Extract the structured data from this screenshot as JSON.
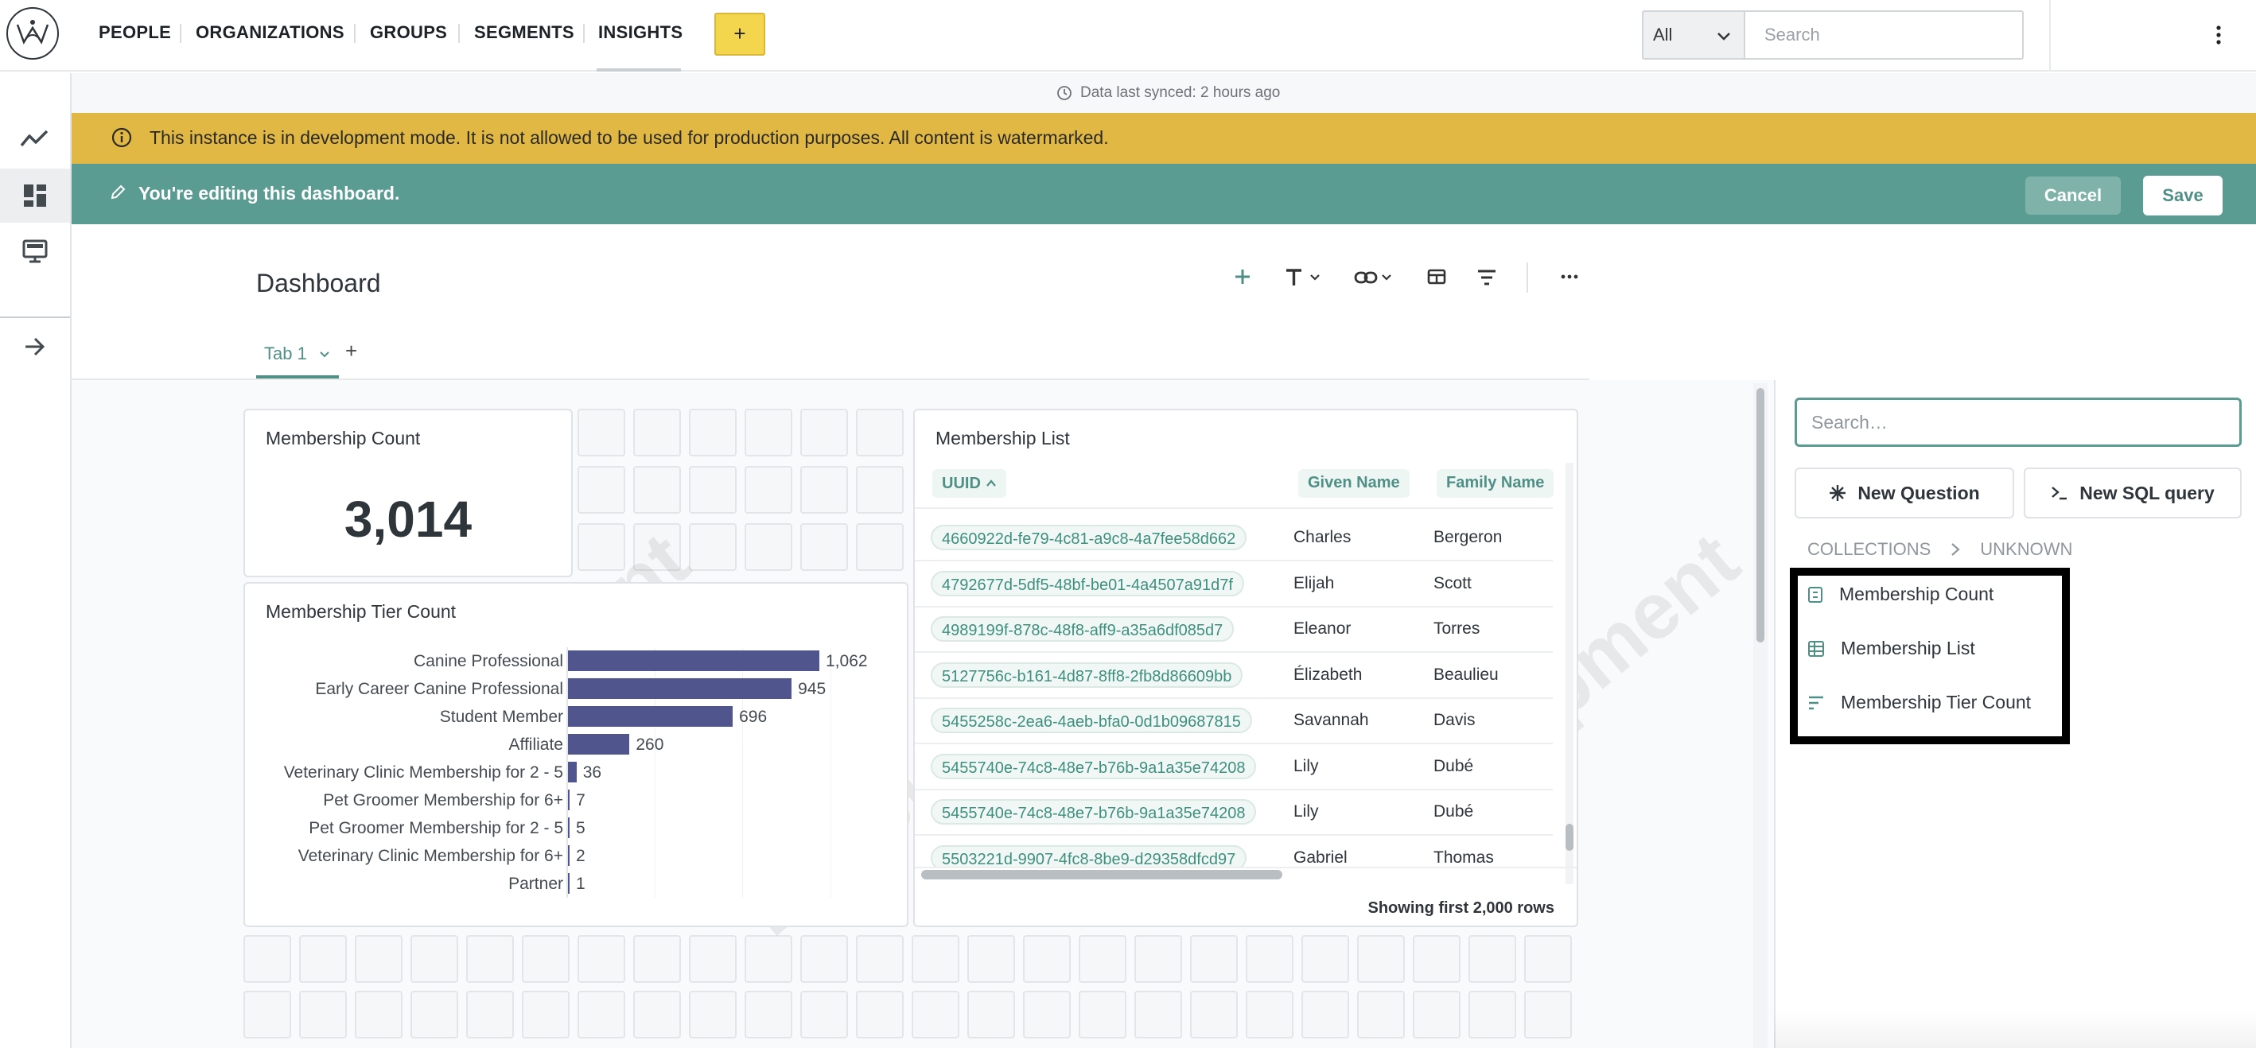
{
  "nav": {
    "items": [
      "PEOPLE",
      "ORGANIZATIONS",
      "GROUPS",
      "SEGMENTS",
      "INSIGHTS"
    ],
    "add_label": "+",
    "search_scope": "All",
    "search_placeholder": "Search"
  },
  "sync": {
    "text": "Data last synced: 2 hours ago"
  },
  "banners": {
    "dev_mode": "This instance is in development mode. It is not allowed to be used for production purposes. All content is watermarked.",
    "editing": "You're editing this dashboard.",
    "cancel_label": "Cancel",
    "save_label": "Save",
    "dev_color": "#e2b844",
    "edit_color": "#5b9c92"
  },
  "dashboard": {
    "title": "Dashboard",
    "tab_label": "Tab 1",
    "tab_add": "+",
    "toolbar_icons": [
      "add-icon",
      "text-icon",
      "link-icon",
      "section-icon",
      "filter-icon",
      "more-icon"
    ]
  },
  "cards": {
    "count": {
      "title": "Membership Count",
      "value": "3,014"
    },
    "tiers": {
      "title": "Membership Tier Count"
    },
    "list": {
      "title": "Membership List",
      "columns": [
        "UUID",
        "Given Name",
        "Family Name"
      ],
      "rows": [
        [
          "4660922d-fe79-4c81-a9c8-4a7fee58d662",
          "Charles",
          "Bergeron"
        ],
        [
          "4792677d-5df5-48bf-be01-4a4507a91d7f",
          "Elijah",
          "Scott"
        ],
        [
          "4989199f-878c-48f8-aff9-a35a6df085d7",
          "Eleanor",
          "Torres"
        ],
        [
          "5127756c-b161-4d87-8ff8-2fb8d86609bb",
          "Élizabeth",
          "Beaulieu"
        ],
        [
          "5455258c-2ea6-4aeb-bfa0-0d1b09687815",
          "Savannah",
          "Davis"
        ],
        [
          "5455740e-74c8-48e7-b76b-9a1a35e74208",
          "Lily",
          "Dubé"
        ],
        [
          "5455740e-74c8-48e7-b76b-9a1a35e74208",
          "Lily",
          "Dubé"
        ],
        [
          "5503221d-9907-4fc8-8be9-d29358dfcd97",
          "Gabriel",
          "Thomas"
        ]
      ],
      "footer": "Showing first 2,000 rows"
    }
  },
  "chart_data": {
    "type": "bar",
    "orientation": "horizontal",
    "categories": [
      "Canine Professional",
      "Early Career Canine Professional",
      "Student Member",
      "Affiliate",
      "Veterinary Clinic Membership for 2 - 5",
      "Pet Groomer Membership for 6+",
      "Pet Groomer Membership for 2 - 5",
      "Veterinary Clinic Membership for 6+",
      "Partner"
    ],
    "values": [
      1062,
      945,
      696,
      260,
      36,
      7,
      5,
      2,
      1
    ],
    "value_labels": [
      "1,062",
      "945",
      "696",
      "260",
      "36",
      "7",
      "5",
      "2",
      "1"
    ],
    "title": "Membership Tier Count",
    "color": "#50558e"
  },
  "watermark": "Development",
  "sidebar": {
    "search_placeholder": "Search…",
    "new_question": "New Question",
    "new_sql": "New SQL query",
    "crumbs": [
      "COLLECTIONS",
      "UNKNOWN"
    ],
    "items": [
      "Membership Count",
      "Membership List",
      "Membership Tier Count"
    ]
  }
}
